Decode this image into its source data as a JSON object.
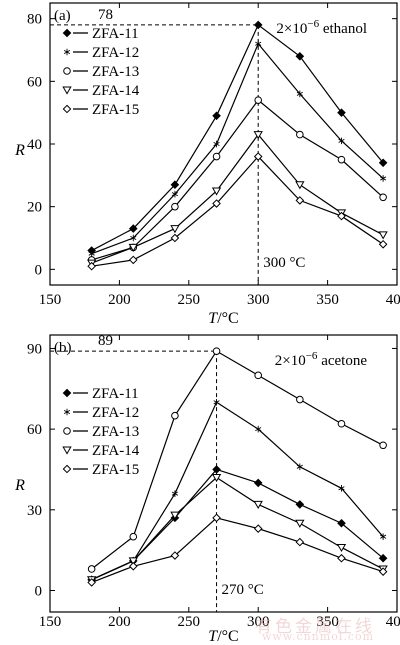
{
  "watermark": {
    "line1": "有色金属在线",
    "line2": "www.cnnmol.com"
  },
  "chart_data": [
    {
      "type": "line",
      "panel_label": "(a)",
      "annotation": "2×10⁻⁶ ethanol",
      "xlabel": "T/°C",
      "ylabel": "R",
      "xlim": [
        150,
        400
      ],
      "ylim": [
        -5,
        85
      ],
      "xticks": [
        150,
        200,
        250,
        300,
        350,
        400
      ],
      "yticks": [
        0,
        20,
        40,
        60,
        80
      ],
      "x": [
        180,
        210,
        240,
        270,
        300,
        330,
        360,
        390
      ],
      "peak": {
        "x": 300,
        "y": 78,
        "y_label": "78",
        "x_label": "300 °C"
      },
      "legend_position": "left",
      "series": [
        {
          "name": "ZFA-11",
          "marker": "diamond-filled",
          "values": [
            6,
            13,
            27,
            49,
            78,
            68,
            50,
            34
          ]
        },
        {
          "name": "ZFA-12",
          "marker": "star",
          "values": [
            5,
            10,
            24,
            40,
            72,
            56,
            41,
            29
          ]
        },
        {
          "name": "ZFA-13",
          "marker": "circle-open",
          "values": [
            3,
            7,
            20,
            36,
            54,
            43,
            35,
            23
          ]
        },
        {
          "name": "ZFA-14",
          "marker": "triangle-down-open",
          "values": [
            2,
            7,
            13,
            25,
            43,
            27,
            18,
            11
          ]
        },
        {
          "name": "ZFA-15",
          "marker": "diamond-open",
          "values": [
            1,
            3,
            10,
            21,
            36,
            22,
            17,
            8
          ]
        }
      ]
    },
    {
      "type": "line",
      "panel_label": "(b)",
      "annotation": "2×10⁻⁶ acetone",
      "xlabel": "T/°C",
      "ylabel": "R",
      "xlim": [
        150,
        400
      ],
      "ylim": [
        -8,
        95
      ],
      "xticks": [
        150,
        200,
        250,
        300,
        350,
        400
      ],
      "yticks": [
        0,
        30,
        60,
        90
      ],
      "x": [
        180,
        210,
        240,
        270,
        300,
        330,
        360,
        390
      ],
      "peak": {
        "x": 270,
        "y": 89,
        "y_label": "89",
        "x_label": "270 °C"
      },
      "legend_position": "left",
      "series": [
        {
          "name": "ZFA-11",
          "marker": "diamond-filled",
          "values": [
            4,
            11,
            27,
            45,
            40,
            32,
            25,
            12
          ]
        },
        {
          "name": "ZFA-12",
          "marker": "star",
          "values": [
            4,
            11,
            36,
            70,
            60,
            46,
            38,
            20
          ]
        },
        {
          "name": "ZFA-13",
          "marker": "circle-open",
          "values": [
            8,
            20,
            65,
            89,
            80,
            71,
            62,
            54
          ]
        },
        {
          "name": "ZFA-14",
          "marker": "triangle-down-open",
          "values": [
            4,
            11,
            28,
            42,
            32,
            25,
            16,
            8
          ]
        },
        {
          "name": "ZFA-15",
          "marker": "diamond-open",
          "values": [
            3,
            9,
            13,
            27,
            23,
            18,
            12,
            7
          ]
        }
      ]
    }
  ]
}
